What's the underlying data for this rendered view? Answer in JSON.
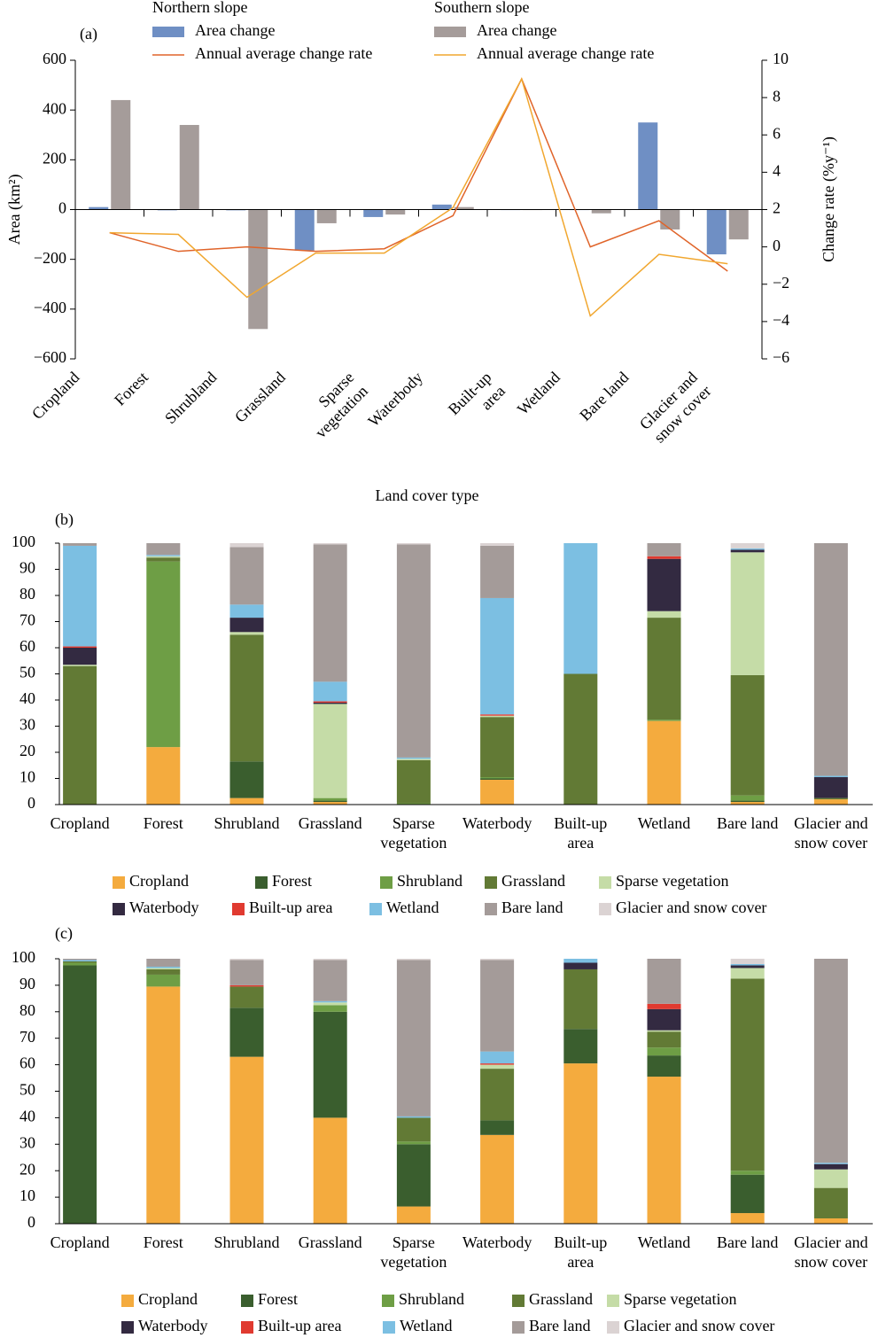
{
  "chart_data": [
    {
      "type": "bar-line",
      "panel": "(a)",
      "xlabel": "Land cover type",
      "ylabel": "Area (km²)",
      "y2label": "Change rate (%y⁻¹)",
      "legend_titles": [
        "Northern slope",
        "Southern slope"
      ],
      "categories": [
        "Cropland",
        "Forest",
        "Shrubland",
        "Grassland",
        "Sparse vegetation",
        "Waterbody",
        "Built-up area",
        "Wetland",
        "Bare land",
        "Glacier and snow cover"
      ],
      "series": [
        {
          "name": "Area change",
          "type": "bar",
          "color": "#6f8fc4",
          "values": [
            10,
            -3,
            -3,
            -165,
            -30,
            20,
            -2,
            -2,
            350,
            -180
          ]
        },
        {
          "name": "Annual average change rate",
          "type": "line",
          "axis": "y2",
          "color": "#e0642a",
          "values": [
            0.76,
            -0.24,
            0,
            -0.24,
            -0.1,
            1.67,
            9,
            0,
            1.4,
            -1.3
          ]
        },
        {
          "name": "Area change",
          "type": "bar",
          "color": "#a59c9a",
          "values": [
            440,
            340,
            -480,
            -55,
            -20,
            10,
            -2,
            -15,
            -80,
            -120
          ]
        },
        {
          "name": "Annual average change rate",
          "type": "line",
          "axis": "y2",
          "color": "#f1a72f",
          "values": [
            0.76,
            0.67,
            -2.7,
            -0.33,
            -0.33,
            2.1,
            9,
            -3.7,
            -0.4,
            -0.9
          ]
        }
      ],
      "ylim": [
        -600,
        600
      ],
      "yticks": [
        600,
        400,
        200,
        0,
        {
          "value": -200,
          "label": "−200"
        },
        {
          "value": -400,
          "label": "−400"
        },
        {
          "value": -600,
          "label": "−600"
        }
      ],
      "y2lim": [
        -6,
        10
      ],
      "y2ticks": [
        10,
        8,
        6,
        4,
        2,
        0,
        {
          "value": -2,
          "label": "−2"
        },
        {
          "value": -4,
          "label": "−4"
        },
        {
          "value": -6,
          "label": "−6"
        }
      ]
    },
    {
      "type": "stacked-bar",
      "panel": "(b)",
      "categories": [
        "Cropland",
        "Forest",
        "Shrubland",
        "Grassland",
        "Sparse vegetation",
        "Waterbody",
        "Built-up area",
        "Wetland",
        "Bare land",
        "Glacier and snow cover"
      ],
      "series": [
        {
          "name": "Cropland",
          "color": "#f4ab3e",
          "values": [
            0,
            22,
            2.5,
            1,
            0,
            9.5,
            0,
            32,
            1,
            2
          ]
        },
        {
          "name": "Forest",
          "color": "#3a5e2e",
          "values": [
            0,
            0,
            14,
            0.5,
            0,
            0.5,
            0,
            0,
            0.5,
            0
          ]
        },
        {
          "name": "Shrubland",
          "color": "#6e9e45",
          "values": [
            0,
            71,
            0,
            1,
            0.5,
            0.5,
            0,
            0.5,
            2,
            0
          ]
        },
        {
          "name": "Grassland",
          "color": "#627a35",
          "values": [
            53,
            1.5,
            48.5,
            0,
            16.5,
            23,
            50,
            39,
            46,
            0.5
          ]
        },
        {
          "name": "Sparse vegetation",
          "color": "#c5dca7",
          "values": [
            0.5,
            0.5,
            1,
            36,
            0.5,
            0.5,
            0,
            2.5,
            47,
            0
          ]
        },
        {
          "name": "Waterbody",
          "color": "#332a41",
          "values": [
            6.5,
            0,
            5.5,
            0.5,
            0,
            0,
            0,
            20,
            1,
            8
          ]
        },
        {
          "name": "Built-up area",
          "color": "#e03a30",
          "values": [
            0.5,
            0,
            0,
            0.5,
            0,
            0.5,
            0,
            1,
            0,
            0
          ]
        },
        {
          "name": "Wetland",
          "color": "#7cbfe2",
          "values": [
            38.5,
            0.5,
            5,
            7.5,
            0.5,
            44.5,
            50,
            0,
            0.5,
            0.5
          ]
        },
        {
          "name": "Bare land",
          "color": "#a49b99",
          "values": [
            1,
            4.5,
            22,
            52.5,
            81.5,
            20,
            0,
            5,
            0,
            89
          ]
        },
        {
          "name": "Glacier and snow cover",
          "color": "#dbd3d3",
          "values": [
            0,
            0,
            1.5,
            0.5,
            0.5,
            1,
            0,
            0,
            2,
            0
          ]
        }
      ],
      "ylim": [
        0,
        100
      ],
      "yticks": [
        0,
        10,
        20,
        30,
        40,
        50,
        60,
        70,
        80,
        90,
        100
      ]
    },
    {
      "type": "stacked-bar",
      "panel": "(c)",
      "categories": [
        "Cropland",
        "Forest",
        "Shrubland",
        "Grassland",
        "Sparse vegetation",
        "Waterbody",
        "Built-up area",
        "Wetland",
        "Bare land",
        "Glacier and snow cover"
      ],
      "series": [
        {
          "name": "Cropland",
          "color": "#f4ab3e",
          "values": [
            0,
            89.5,
            63,
            40,
            6.5,
            33.5,
            60.5,
            55.5,
            4,
            2
          ]
        },
        {
          "name": "Forest",
          "color": "#3a5e2e",
          "values": [
            97.5,
            0,
            18.5,
            40,
            23.5,
            5.5,
            13,
            8,
            14.5,
            0
          ]
        },
        {
          "name": "Shrubland",
          "color": "#6e9e45",
          "values": [
            1,
            4.5,
            0,
            2.5,
            1,
            0,
            0,
            3,
            1.5,
            0
          ]
        },
        {
          "name": "Grassland",
          "color": "#627a35",
          "values": [
            0.5,
            2,
            8,
            0,
            9,
            19.5,
            22.5,
            6,
            72.5,
            11.5
          ]
        },
        {
          "name": "Sparse vegetation",
          "color": "#c5dca7",
          "values": [
            0,
            0.5,
            0,
            1,
            0,
            1.5,
            0,
            0.5,
            4,
            7
          ]
        },
        {
          "name": "Waterbody",
          "color": "#332a41",
          "values": [
            0,
            0,
            0,
            0,
            0,
            0,
            2.5,
            8,
            1,
            2
          ]
        },
        {
          "name": "Built-up area",
          "color": "#e03a30",
          "values": [
            0,
            0,
            0.5,
            0,
            0,
            0.5,
            0,
            2,
            0,
            0
          ]
        },
        {
          "name": "Wetland",
          "color": "#7cbfe2",
          "values": [
            0.5,
            0.5,
            0,
            0.5,
            0.5,
            4.5,
            1.5,
            0,
            0.5,
            0.5
          ]
        },
        {
          "name": "Bare land",
          "color": "#a49b99",
          "values": [
            0.5,
            3,
            9.5,
            15.5,
            59,
            34.5,
            0,
            17,
            0,
            77
          ]
        },
        {
          "name": "Glacier and snow cover",
          "color": "#dbd3d3",
          "values": [
            0,
            0,
            0.5,
            0.5,
            0.5,
            0.5,
            0,
            0,
            2,
            0
          ]
        }
      ],
      "ylim": [
        0,
        100
      ],
      "yticks": [
        0,
        10,
        20,
        30,
        40,
        50,
        60,
        70,
        80,
        90,
        100
      ]
    }
  ]
}
